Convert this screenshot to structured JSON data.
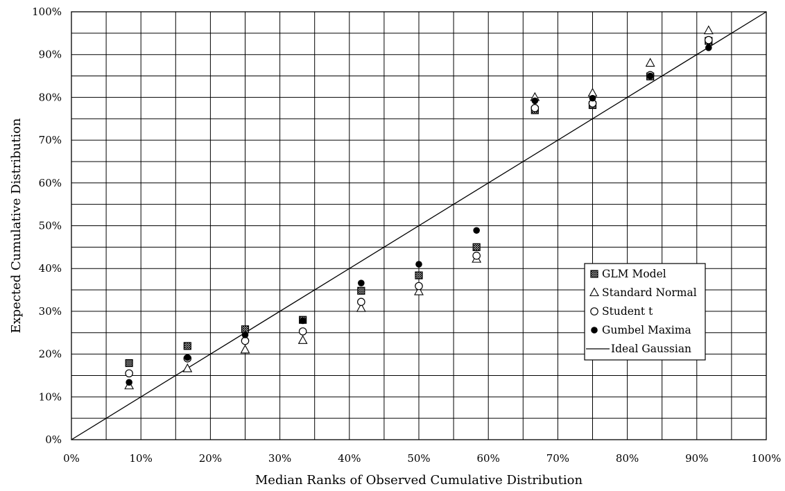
{
  "chart_data": {
    "type": "scatter",
    "xlabel": "Median Ranks of Observed Cumulative Distribution",
    "ylabel": "Expected Cumulative Distribution",
    "xlim": [
      0,
      100
    ],
    "ylim": [
      0,
      100
    ],
    "x_ticks": [
      "0%",
      "10%",
      "20%",
      "30%",
      "40%",
      "50%",
      "60%",
      "70%",
      "80%",
      "90%",
      "100%"
    ],
    "y_ticks": [
      "0%",
      "10%",
      "20%",
      "30%",
      "40%",
      "50%",
      "60%",
      "70%",
      "80%",
      "90%",
      "100%"
    ],
    "grid": true,
    "legend_position": "right",
    "x": [
      8.3,
      16.7,
      25.0,
      33.3,
      41.7,
      50.0,
      58.3,
      66.7,
      75.0,
      83.3,
      91.7
    ],
    "series": [
      {
        "name": "GLM Model",
        "marker": "hatched-square",
        "values": [
          17.9,
          21.9,
          25.8,
          28.0,
          34.8,
          38.4,
          45.0,
          77.0,
          78.2,
          84.9,
          93.2
        ]
      },
      {
        "name": "Standard Normal",
        "marker": "open-triangle",
        "values": [
          12.6,
          16.6,
          21.0,
          23.2,
          30.7,
          34.6,
          42.2,
          80.0,
          81.0,
          88.0,
          95.6
        ]
      },
      {
        "name": "Student t",
        "marker": "open-circle",
        "values": [
          15.5,
          19.0,
          23.1,
          25.3,
          32.2,
          35.9,
          43.0,
          77.5,
          78.6,
          85.2,
          93.4
        ]
      },
      {
        "name": "Gumbel Maxima",
        "marker": "filled-circle",
        "values": [
          13.4,
          19.2,
          24.5,
          27.8,
          36.6,
          41.0,
          48.9,
          79.2,
          79.8,
          85.0,
          91.6
        ]
      }
    ],
    "reference_line": {
      "name": "Ideal Gaussian",
      "from": [
        0,
        0
      ],
      "to": [
        100,
        100
      ]
    }
  }
}
